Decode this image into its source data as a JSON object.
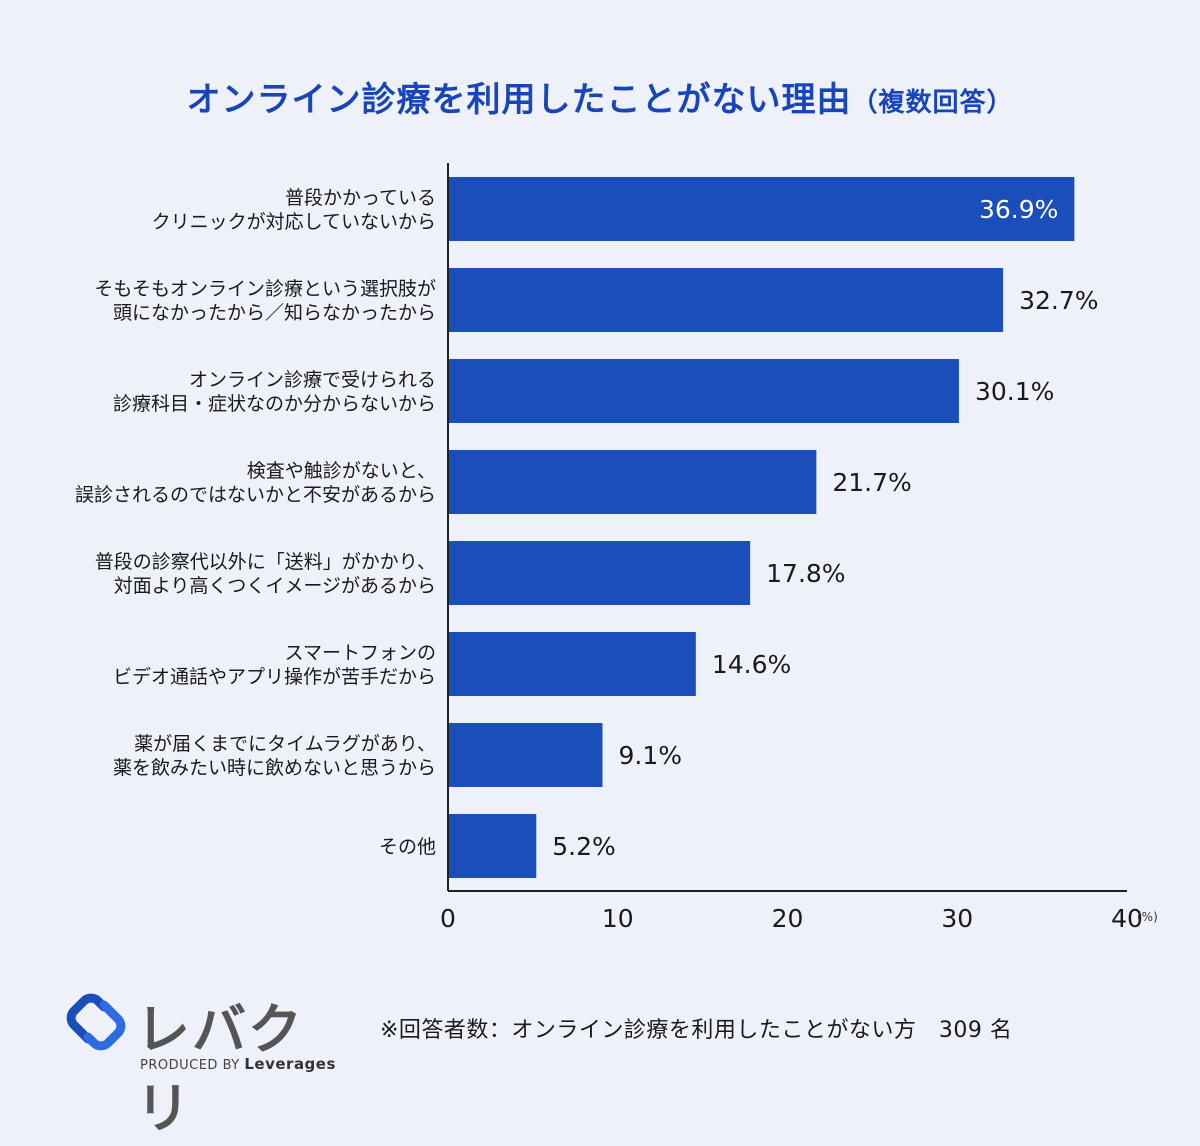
{
  "title": {
    "main": "オンライン診療を利用したことがない理由",
    "sub": "（複数回答）"
  },
  "chart_data": {
    "type": "bar",
    "orientation": "horizontal",
    "title": "オンライン診療を利用したことがない理由（複数回答）",
    "categories": [
      [
        "普段かかっている",
        "クリニックが対応していないから"
      ],
      [
        "そもそもオンライン診療という選択肢が",
        "頭になかったから／知らなかったから"
      ],
      [
        "オンライン診療で受けられる",
        "診療科目・症状なのか分からないから"
      ],
      [
        "検査や触診がないと、",
        "誤診されるのではないかと不安があるから"
      ],
      [
        "普段の診察代以外に「送料」がかかり、",
        "対面より高くつくイメージがあるから"
      ],
      [
        "スマートフォンの",
        "ビデオ通話やアプリ操作が苦手だから"
      ],
      [
        "薬が届くまでにタイムラグがあり、",
        "薬を飲みたい時に飲めないと思うから"
      ],
      [
        "その他"
      ]
    ],
    "values": [
      36.9,
      32.7,
      30.1,
      21.7,
      17.8,
      14.6,
      9.1,
      5.2
    ],
    "value_labels": [
      "36.9%",
      "32.7%",
      "30.1%",
      "21.7%",
      "17.8%",
      "14.6%",
      "9.1%",
      "5.2%"
    ],
    "xlim": [
      0,
      40
    ],
    "xticks": [
      "0",
      "10",
      "20",
      "30",
      "40"
    ],
    "x_unit": "(%)",
    "bar_color": "#1a4fbb",
    "grid": false
  },
  "logo": {
    "name": "レバクリ",
    "produced_by": "PRODUCED BY",
    "company": "Leverages"
  },
  "footnote": "※回答者数：オンライン診療を利用したことがない方　309 名"
}
